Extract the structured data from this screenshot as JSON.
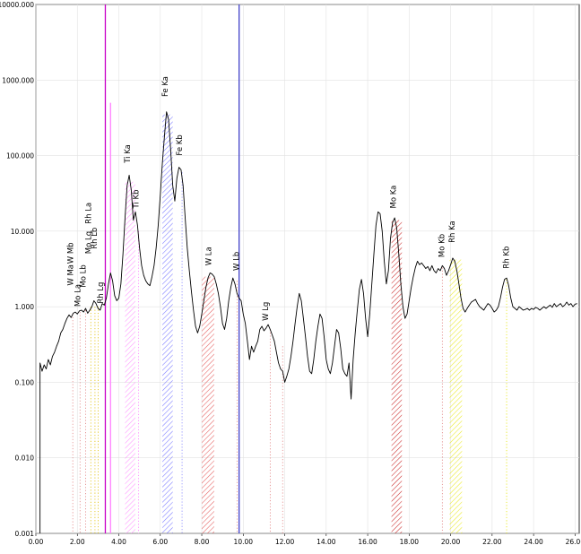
{
  "chart_data": {
    "type": "line",
    "title": "",
    "xlabel": "",
    "ylabel": "",
    "xlim": [
      0,
      26.2
    ],
    "ylim": [
      0.001,
      10000
    ],
    "y_scale": "log",
    "grid": true,
    "x_ticks": [
      "0.00",
      "2.00",
      "4.00",
      "6.00",
      "8.00",
      "10.00",
      "12.00",
      "14.00",
      "16.00",
      "18.00",
      "20.00",
      "22.00",
      "24.00",
      "26.00"
    ],
    "y_ticks": [
      {
        "value": 10000,
        "label": "10000.000"
      },
      {
        "value": 1000,
        "label": "1000.000"
      },
      {
        "value": 100,
        "label": "100.000"
      },
      {
        "value": 10,
        "label": "10.000"
      },
      {
        "value": 1,
        "label": "1.000"
      },
      {
        "value": 0.1,
        "label": "0.100"
      },
      {
        "value": 0.01,
        "label": "0.010"
      },
      {
        "value": 0.001,
        "label": "0.001"
      }
    ],
    "series": [
      {
        "color": "#000000",
        "points": [
          [
            0.2,
            0.001
          ],
          [
            0.2,
            0.18
          ],
          [
            0.3,
            0.14
          ],
          [
            0.4,
            0.17
          ],
          [
            0.5,
            0.15
          ],
          [
            0.6,
            0.2
          ],
          [
            0.7,
            0.17
          ],
          [
            0.8,
            0.22
          ],
          [
            0.9,
            0.25
          ],
          [
            1.0,
            0.3
          ],
          [
            1.1,
            0.35
          ],
          [
            1.2,
            0.45
          ],
          [
            1.3,
            0.5
          ],
          [
            1.4,
            0.6
          ],
          [
            1.5,
            0.7
          ],
          [
            1.6,
            0.78
          ],
          [
            1.7,
            0.72
          ],
          [
            1.8,
            0.82
          ],
          [
            1.9,
            0.85
          ],
          [
            2.0,
            0.8
          ],
          [
            2.1,
            0.88
          ],
          [
            2.2,
            0.9
          ],
          [
            2.3,
            0.85
          ],
          [
            2.4,
            0.95
          ],
          [
            2.5,
            0.82
          ],
          [
            2.6,
            0.9
          ],
          [
            2.7,
            1.0
          ],
          [
            2.8,
            1.2
          ],
          [
            2.9,
            1.1
          ],
          [
            3.0,
            0.95
          ],
          [
            3.1,
            0.9
          ],
          [
            3.2,
            1.1
          ],
          [
            3.3,
            1.05
          ],
          [
            3.4,
            1.3
          ],
          [
            3.5,
            2.0
          ],
          [
            3.6,
            2.8
          ],
          [
            3.7,
            2.2
          ],
          [
            3.8,
            1.4
          ],
          [
            3.9,
            1.2
          ],
          [
            4.0,
            1.3
          ],
          [
            4.1,
            2.0
          ],
          [
            4.2,
            5.0
          ],
          [
            4.3,
            15.0
          ],
          [
            4.4,
            40.0
          ],
          [
            4.5,
            55.0
          ],
          [
            4.6,
            35.0
          ],
          [
            4.7,
            14.0
          ],
          [
            4.8,
            18.0
          ],
          [
            4.9,
            12.0
          ],
          [
            5.0,
            6.0
          ],
          [
            5.1,
            3.5
          ],
          [
            5.2,
            2.6
          ],
          [
            5.3,
            2.2
          ],
          [
            5.4,
            2.0
          ],
          [
            5.5,
            1.9
          ],
          [
            5.6,
            2.5
          ],
          [
            5.7,
            3.5
          ],
          [
            5.8,
            6.0
          ],
          [
            5.9,
            12.0
          ],
          [
            6.0,
            30.0
          ],
          [
            6.1,
            80.0
          ],
          [
            6.2,
            180.0
          ],
          [
            6.3,
            380.0
          ],
          [
            6.4,
            300.0
          ],
          [
            6.5,
            120.0
          ],
          [
            6.6,
            40.0
          ],
          [
            6.7,
            25.0
          ],
          [
            6.8,
            50.0
          ],
          [
            6.9,
            70.0
          ],
          [
            7.0,
            65.0
          ],
          [
            7.1,
            40.0
          ],
          [
            7.2,
            15.0
          ],
          [
            7.3,
            6.0
          ],
          [
            7.4,
            3.0
          ],
          [
            7.5,
            1.6
          ],
          [
            7.6,
            0.9
          ],
          [
            7.7,
            0.55
          ],
          [
            7.8,
            0.45
          ],
          [
            7.9,
            0.55
          ],
          [
            8.0,
            0.8
          ],
          [
            8.1,
            1.2
          ],
          [
            8.2,
            1.8
          ],
          [
            8.3,
            2.4
          ],
          [
            8.4,
            2.8
          ],
          [
            8.5,
            2.7
          ],
          [
            8.6,
            2.5
          ],
          [
            8.7,
            2.0
          ],
          [
            8.8,
            1.5
          ],
          [
            8.9,
            1.0
          ],
          [
            9.0,
            0.6
          ],
          [
            9.1,
            0.5
          ],
          [
            9.2,
            0.7
          ],
          [
            9.3,
            1.2
          ],
          [
            9.4,
            1.8
          ],
          [
            9.5,
            2.4
          ],
          [
            9.6,
            2.0
          ],
          [
            9.7,
            1.5
          ],
          [
            9.8,
            1.3
          ],
          [
            9.9,
            1.2
          ],
          [
            10.0,
            0.8
          ],
          [
            10.1,
            0.6
          ],
          [
            10.2,
            0.35
          ],
          [
            10.3,
            0.2
          ],
          [
            10.4,
            0.3
          ],
          [
            10.5,
            0.25
          ],
          [
            10.6,
            0.3
          ],
          [
            10.7,
            0.35
          ],
          [
            10.8,
            0.5
          ],
          [
            10.9,
            0.55
          ],
          [
            11.0,
            0.48
          ],
          [
            11.1,
            0.52
          ],
          [
            11.2,
            0.58
          ],
          [
            11.3,
            0.5
          ],
          [
            11.4,
            0.42
          ],
          [
            11.5,
            0.35
          ],
          [
            11.6,
            0.25
          ],
          [
            11.7,
            0.18
          ],
          [
            11.8,
            0.15
          ],
          [
            11.9,
            0.14
          ],
          [
            12.0,
            0.1
          ],
          [
            12.1,
            0.12
          ],
          [
            12.2,
            0.15
          ],
          [
            12.3,
            0.22
          ],
          [
            12.4,
            0.35
          ],
          [
            12.5,
            0.6
          ],
          [
            12.6,
            1.0
          ],
          [
            12.7,
            1.5
          ],
          [
            12.8,
            1.2
          ],
          [
            12.9,
            0.7
          ],
          [
            13.0,
            0.4
          ],
          [
            13.1,
            0.22
          ],
          [
            13.2,
            0.14
          ],
          [
            13.3,
            0.13
          ],
          [
            13.4,
            0.2
          ],
          [
            13.5,
            0.35
          ],
          [
            13.6,
            0.55
          ],
          [
            13.7,
            0.8
          ],
          [
            13.8,
            0.7
          ],
          [
            13.9,
            0.4
          ],
          [
            14.0,
            0.2
          ],
          [
            14.1,
            0.15
          ],
          [
            14.2,
            0.13
          ],
          [
            14.3,
            0.18
          ],
          [
            14.4,
            0.3
          ],
          [
            14.5,
            0.5
          ],
          [
            14.6,
            0.45
          ],
          [
            14.7,
            0.28
          ],
          [
            14.8,
            0.15
          ],
          [
            14.9,
            0.13
          ],
          [
            15.0,
            0.12
          ],
          [
            15.1,
            0.18
          ],
          [
            15.2,
            0.06
          ],
          [
            15.3,
            0.2
          ],
          [
            15.4,
            0.45
          ],
          [
            15.5,
            0.9
          ],
          [
            15.6,
            1.7
          ],
          [
            15.7,
            2.3
          ],
          [
            15.8,
            1.5
          ],
          [
            15.9,
            0.7
          ],
          [
            16.0,
            0.4
          ],
          [
            16.1,
            0.8
          ],
          [
            16.2,
            2.0
          ],
          [
            16.3,
            5.0
          ],
          [
            16.4,
            12.0
          ],
          [
            16.5,
            18.0
          ],
          [
            16.6,
            17.0
          ],
          [
            16.7,
            10.0
          ],
          [
            16.8,
            4.0
          ],
          [
            16.9,
            2.0
          ],
          [
            17.0,
            3.0
          ],
          [
            17.1,
            8.0
          ],
          [
            17.2,
            13.0
          ],
          [
            17.3,
            15.0
          ],
          [
            17.4,
            11.0
          ],
          [
            17.5,
            5.0
          ],
          [
            17.6,
            2.0
          ],
          [
            17.7,
            1.0
          ],
          [
            17.8,
            0.7
          ],
          [
            17.9,
            0.8
          ],
          [
            18.0,
            1.2
          ],
          [
            18.1,
            1.8
          ],
          [
            18.2,
            2.5
          ],
          [
            18.3,
            3.3
          ],
          [
            18.4,
            4.0
          ],
          [
            18.5,
            3.6
          ],
          [
            18.6,
            3.8
          ],
          [
            18.7,
            3.5
          ],
          [
            18.8,
            3.2
          ],
          [
            18.9,
            3.4
          ],
          [
            19.0,
            3.0
          ],
          [
            19.1,
            3.5
          ],
          [
            19.2,
            3.0
          ],
          [
            19.3,
            2.8
          ],
          [
            19.4,
            3.2
          ],
          [
            19.5,
            3.0
          ],
          [
            19.6,
            3.5
          ],
          [
            19.7,
            3.2
          ],
          [
            19.8,
            2.6
          ],
          [
            19.9,
            3.0
          ],
          [
            20.0,
            3.6
          ],
          [
            20.1,
            4.4
          ],
          [
            20.2,
            4.0
          ],
          [
            20.3,
            3.0
          ],
          [
            20.4,
            2.0
          ],
          [
            20.5,
            1.3
          ],
          [
            20.6,
            0.95
          ],
          [
            20.7,
            0.85
          ],
          [
            20.8,
            0.95
          ],
          [
            20.9,
            1.05
          ],
          [
            21.0,
            1.15
          ],
          [
            21.1,
            1.2
          ],
          [
            21.2,
            1.25
          ],
          [
            21.3,
            1.1
          ],
          [
            21.4,
            1.0
          ],
          [
            21.5,
            0.95
          ],
          [
            21.6,
            0.9
          ],
          [
            21.7,
            1.0
          ],
          [
            21.8,
            1.1
          ],
          [
            21.9,
            1.05
          ],
          [
            22.0,
            0.95
          ],
          [
            22.1,
            0.85
          ],
          [
            22.2,
            0.9
          ],
          [
            22.3,
            1.0
          ],
          [
            22.4,
            1.3
          ],
          [
            22.5,
            1.8
          ],
          [
            22.6,
            2.3
          ],
          [
            22.7,
            2.4
          ],
          [
            22.8,
            1.9
          ],
          [
            22.9,
            1.3
          ],
          [
            23.0,
            1.0
          ],
          [
            23.1,
            0.95
          ],
          [
            23.2,
            0.9
          ],
          [
            23.3,
            1.0
          ],
          [
            23.4,
            0.95
          ],
          [
            23.5,
            0.9
          ],
          [
            23.6,
            0.92
          ],
          [
            23.7,
            0.95
          ],
          [
            23.8,
            0.9
          ],
          [
            23.9,
            0.95
          ],
          [
            24.0,
            0.92
          ],
          [
            24.1,
            0.98
          ],
          [
            24.2,
            0.95
          ],
          [
            24.3,
            0.9
          ],
          [
            24.4,
            0.95
          ],
          [
            24.5,
            1.0
          ],
          [
            24.6,
            0.95
          ],
          [
            24.7,
            1.0
          ],
          [
            24.8,
            1.05
          ],
          [
            24.9,
            0.98
          ],
          [
            25.0,
            1.1
          ],
          [
            25.1,
            1.0
          ],
          [
            25.2,
            1.05
          ],
          [
            25.3,
            1.1
          ],
          [
            25.4,
            1.0
          ],
          [
            25.5,
            1.05
          ],
          [
            25.6,
            1.15
          ],
          [
            25.7,
            1.05
          ],
          [
            25.8,
            1.1
          ],
          [
            25.9,
            1.0
          ],
          [
            26.0,
            1.08
          ],
          [
            26.1,
            1.1
          ]
        ]
      }
    ],
    "markers": [
      {
        "x": 3.35,
        "color": "#c800c8",
        "top": 10000
      },
      {
        "x": 3.6,
        "color": "#ff80ff",
        "top": 500
      },
      {
        "x": 9.8,
        "color": "#4040c8",
        "top": 10000
      }
    ],
    "hatched_bands": [
      {
        "x0": 4.3,
        "x1": 4.8,
        "y_top": 45,
        "color": "#ff80ff"
      },
      {
        "x0": 6.1,
        "x1": 6.6,
        "y_top": 350,
        "color": "#6060ff"
      },
      {
        "x0": 8.0,
        "x1": 8.6,
        "y_top": 2.5,
        "color": "#e04040"
      },
      {
        "x0": 17.15,
        "x1": 17.65,
        "y_top": 14,
        "color": "#c00000"
      },
      {
        "x0": 19.95,
        "x1": 20.55,
        "y_top": 4.2,
        "color": "#e6e600"
      }
    ],
    "dotted_lines": [
      {
        "x": 1.78,
        "top": 0.8,
        "color": "#e08080"
      },
      {
        "x": 2.13,
        "top": 0.85,
        "color": "#e08080"
      },
      {
        "x": 2.4,
        "top": 0.9,
        "color": "#e08080"
      },
      {
        "x": 2.65,
        "top": 1.0,
        "color": "#e0c000"
      },
      {
        "x": 2.85,
        "top": 1.0,
        "color": "#e0c000"
      },
      {
        "x": 3.0,
        "top": 1.0,
        "color": "#e0c000"
      },
      {
        "x": 4.95,
        "top": 10,
        "color": "#ff80ff"
      },
      {
        "x": 7.05,
        "top": 60,
        "color": "#8080ff"
      },
      {
        "x": 9.7,
        "top": 2.2,
        "color": "#e08080"
      },
      {
        "x": 11.3,
        "top": 0.5,
        "color": "#e08080"
      },
      {
        "x": 11.9,
        "top": 0.3,
        "color": "#e08080"
      },
      {
        "x": 19.6,
        "top": 3.3,
        "color": "#e08080"
      },
      {
        "x": 22.7,
        "top": 2.3,
        "color": "#e6e600"
      }
    ],
    "annotations": [
      {
        "text": "W Ma",
        "x": 1.8,
        "y": 1.9
      },
      {
        "text": "Mo La",
        "x": 2.15,
        "y": 1.0
      },
      {
        "text": "W Mb",
        "x": 1.8,
        "y": 3.7
      },
      {
        "text": "Mo Lb",
        "x": 2.4,
        "y": 1.8
      },
      {
        "text": "Mo Lg",
        "x": 2.65,
        "y": 5.0
      },
      {
        "text": "Rh Lb",
        "x": 2.95,
        "y": 5.8
      },
      {
        "text": "Rh La",
        "x": 2.65,
        "y": 12.5
      },
      {
        "text": "Rh Lg",
        "x": 3.25,
        "y": 1.1
      },
      {
        "text": "Ti Ka",
        "x": 4.55,
        "y": 80
      },
      {
        "text": "Ti Kb",
        "x": 4.95,
        "y": 20
      },
      {
        "text": "Fe Ka",
        "x": 6.35,
        "y": 600
      },
      {
        "text": "Fe Kb",
        "x": 7.05,
        "y": 100
      },
      {
        "text": "W La",
        "x": 8.45,
        "y": 3.5
      },
      {
        "text": "W Lb",
        "x": 9.8,
        "y": 3.0
      },
      {
        "text": "W Lg",
        "x": 11.2,
        "y": 0.65
      },
      {
        "text": "Mo Ka",
        "x": 17.35,
        "y": 20
      },
      {
        "text": "Mo Kb",
        "x": 19.7,
        "y": 4.5
      },
      {
        "text": "Rh Ka",
        "x": 20.2,
        "y": 7.0
      },
      {
        "text": "Rh Kb",
        "x": 22.8,
        "y": 3.2
      }
    ]
  }
}
